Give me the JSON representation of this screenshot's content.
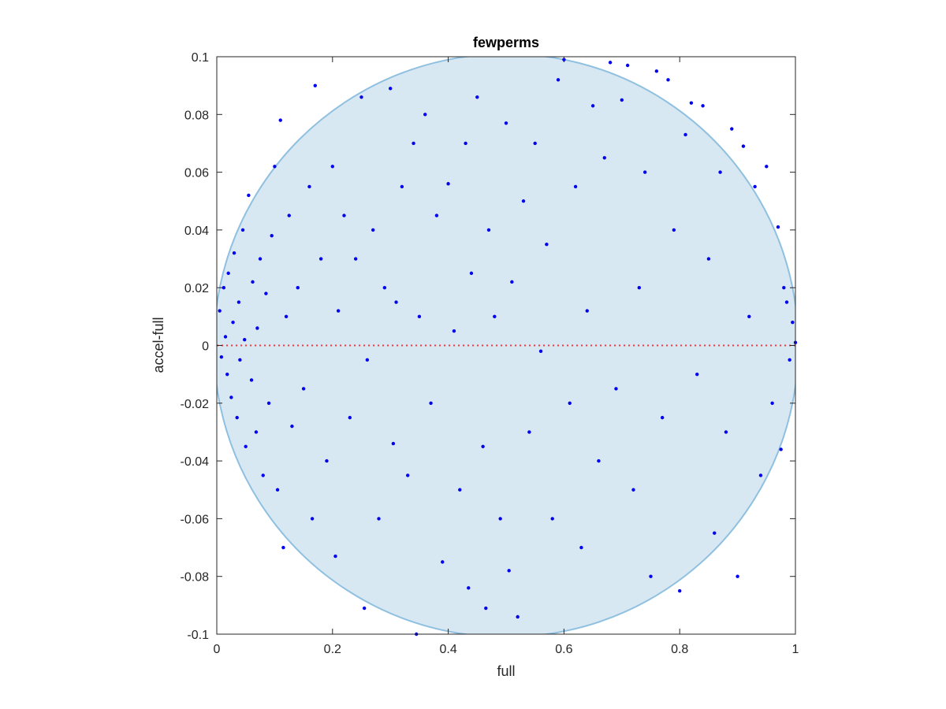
{
  "chart_data": {
    "type": "scatter",
    "title": "fewperms",
    "xlabel": "full",
    "ylabel": "accel-full",
    "xlim": [
      0,
      1
    ],
    "ylim": [
      -0.1,
      0.1
    ],
    "xticks": [
      0,
      0.2,
      0.4,
      0.6,
      0.8,
      1
    ],
    "xtick_labels": [
      "0",
      "0.2",
      "0.4",
      "0.6",
      "0.8",
      "1"
    ],
    "yticks": [
      -0.1,
      -0.08,
      -0.06,
      -0.04,
      -0.02,
      0,
      0.02,
      0.04,
      0.06,
      0.08,
      0.1
    ],
    "ytick_labels": [
      "-0.1",
      "-0.08",
      "-0.06",
      "-0.04",
      "-0.02",
      "0",
      "0.02",
      "0.04",
      "0.06",
      "0.08",
      "0.1"
    ],
    "grid": false,
    "reference_line": {
      "y": 0,
      "style": "dotted",
      "color": "#ff3333"
    },
    "ellipse": {
      "center": [
        0.5,
        0.0
      ],
      "semi_axes": [
        0.505,
        0.101
      ],
      "rotation_deg": -12,
      "fill": "#d8e8f3",
      "stroke": "#8fc0e0"
    },
    "colors": {
      "points": "#0000ee",
      "axes": "#262626"
    },
    "series": [
      {
        "points": [
          [
            0.005,
            0.012
          ],
          [
            0.008,
            -0.004
          ],
          [
            0.012,
            0.02
          ],
          [
            0.015,
            0.003
          ],
          [
            0.018,
            -0.01
          ],
          [
            0.02,
            0.025
          ],
          [
            0.025,
            -0.018
          ],
          [
            0.028,
            0.008
          ],
          [
            0.03,
            0.032
          ],
          [
            0.035,
            -0.025
          ],
          [
            0.038,
            0.015
          ],
          [
            0.04,
            -0.005
          ],
          [
            0.045,
            0.04
          ],
          [
            0.048,
            0.002
          ],
          [
            0.05,
            -0.035
          ],
          [
            0.055,
            0.052
          ],
          [
            0.06,
            -0.012
          ],
          [
            0.062,
            0.022
          ],
          [
            0.068,
            -0.03
          ],
          [
            0.07,
            0.006
          ],
          [
            0.075,
            0.03
          ],
          [
            0.08,
            -0.045
          ],
          [
            0.085,
            0.018
          ],
          [
            0.09,
            -0.02
          ],
          [
            0.095,
            0.038
          ],
          [
            0.1,
            0.062
          ],
          [
            0.105,
            -0.05
          ],
          [
            0.11,
            0.078
          ],
          [
            0.115,
            -0.07
          ],
          [
            0.12,
            0.01
          ],
          [
            0.125,
            0.045
          ],
          [
            0.13,
            -0.028
          ],
          [
            0.14,
            0.02
          ],
          [
            0.15,
            -0.015
          ],
          [
            0.16,
            0.055
          ],
          [
            0.165,
            -0.06
          ],
          [
            0.17,
            0.09
          ],
          [
            0.18,
            0.03
          ],
          [
            0.19,
            -0.04
          ],
          [
            0.2,
            0.062
          ],
          [
            0.205,
            -0.073
          ],
          [
            0.21,
            0.012
          ],
          [
            0.22,
            0.045
          ],
          [
            0.23,
            -0.025
          ],
          [
            0.24,
            0.03
          ],
          [
            0.25,
            0.086
          ],
          [
            0.255,
            -0.091
          ],
          [
            0.26,
            -0.005
          ],
          [
            0.27,
            0.04
          ],
          [
            0.28,
            -0.06
          ],
          [
            0.29,
            0.02
          ],
          [
            0.3,
            0.089
          ],
          [
            0.305,
            -0.034
          ],
          [
            0.31,
            0.015
          ],
          [
            0.32,
            0.055
          ],
          [
            0.33,
            -0.045
          ],
          [
            0.34,
            0.07
          ],
          [
            0.345,
            -0.1
          ],
          [
            0.35,
            0.01
          ],
          [
            0.36,
            0.08
          ],
          [
            0.37,
            -0.02
          ],
          [
            0.38,
            0.045
          ],
          [
            0.39,
            -0.075
          ],
          [
            0.4,
            0.056
          ],
          [
            0.41,
            0.005
          ],
          [
            0.42,
            -0.05
          ],
          [
            0.43,
            0.07
          ],
          [
            0.435,
            -0.084
          ],
          [
            0.44,
            0.025
          ],
          [
            0.45,
            0.086
          ],
          [
            0.46,
            -0.035
          ],
          [
            0.465,
            -0.091
          ],
          [
            0.47,
            0.04
          ],
          [
            0.48,
            0.01
          ],
          [
            0.49,
            -0.06
          ],
          [
            0.5,
            0.077
          ],
          [
            0.505,
            -0.078
          ],
          [
            0.51,
            0.022
          ],
          [
            0.52,
            -0.094
          ],
          [
            0.53,
            0.05
          ],
          [
            0.54,
            -0.03
          ],
          [
            0.55,
            0.07
          ],
          [
            0.56,
            -0.002
          ],
          [
            0.57,
            0.035
          ],
          [
            0.58,
            -0.06
          ],
          [
            0.59,
            0.092
          ],
          [
            0.6,
            0.099
          ],
          [
            0.61,
            -0.02
          ],
          [
            0.62,
            0.055
          ],
          [
            0.63,
            -0.07
          ],
          [
            0.64,
            0.012
          ],
          [
            0.65,
            0.083
          ],
          [
            0.66,
            -0.04
          ],
          [
            0.67,
            0.065
          ],
          [
            0.68,
            0.098
          ],
          [
            0.69,
            -0.015
          ],
          [
            0.7,
            0.085
          ],
          [
            0.71,
            0.097
          ],
          [
            0.72,
            -0.05
          ],
          [
            0.73,
            0.02
          ],
          [
            0.74,
            0.06
          ],
          [
            0.75,
            -0.08
          ],
          [
            0.76,
            0.095
          ],
          [
            0.77,
            -0.025
          ],
          [
            0.78,
            0.092
          ],
          [
            0.79,
            0.04
          ],
          [
            0.8,
            -0.085
          ],
          [
            0.81,
            0.073
          ],
          [
            0.82,
            0.084
          ],
          [
            0.83,
            -0.01
          ],
          [
            0.84,
            0.083
          ],
          [
            0.85,
            0.03
          ],
          [
            0.86,
            -0.065
          ],
          [
            0.87,
            0.06
          ],
          [
            0.88,
            -0.03
          ],
          [
            0.89,
            0.075
          ],
          [
            0.9,
            -0.08
          ],
          [
            0.91,
            0.069
          ],
          [
            0.92,
            0.01
          ],
          [
            0.93,
            0.055
          ],
          [
            0.94,
            -0.045
          ],
          [
            0.95,
            0.062
          ],
          [
            0.96,
            -0.02
          ],
          [
            0.97,
            0.041
          ],
          [
            0.975,
            -0.036
          ],
          [
            0.98,
            0.02
          ],
          [
            0.985,
            0.015
          ],
          [
            0.99,
            -0.005
          ],
          [
            0.995,
            0.008
          ],
          [
            1.0,
            0.001
          ]
        ]
      }
    ]
  }
}
